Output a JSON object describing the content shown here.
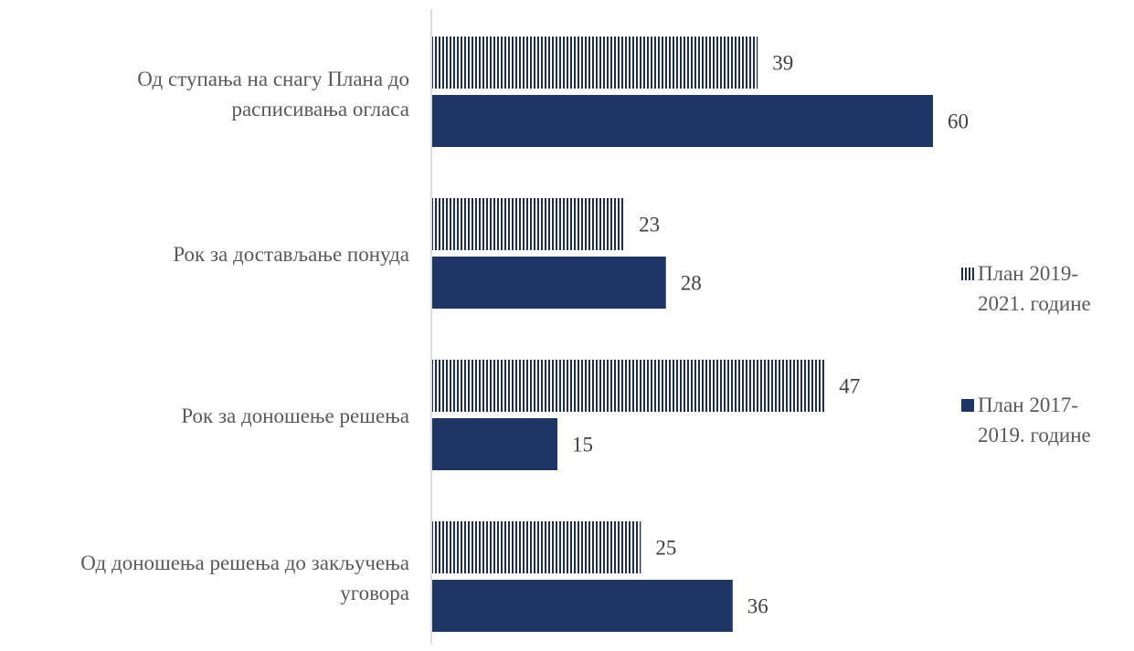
{
  "chart_data": {
    "type": "bar",
    "orientation": "horizontal",
    "categories": [
      "Од ступања на снагу Плана до расписивања огласа",
      "Рок за достављање понуда",
      "Рок за доношење решења",
      "Од доношења решења до закључења уговора"
    ],
    "series": [
      {
        "name": "План 2019-2021. године",
        "values": [
          39,
          23,
          47,
          25
        ],
        "color": "#1f2c4a",
        "pattern": "vertical-stripes"
      },
      {
        "name": "План 2017-2019. године",
        "values": [
          60,
          28,
          15,
          36
        ],
        "color": "#1f3563",
        "pattern": "solid"
      }
    ],
    "xlim": [
      0,
      60
    ],
    "legend_position": "right",
    "grid": false
  },
  "labels": {
    "cat0": [
      "Од ступања на снагу Плана до",
      "расписивања огласа"
    ],
    "cat1": [
      "Рок за достављање понуда"
    ],
    "cat2": [
      "Рок за доношење решења"
    ],
    "cat3": [
      "Од доношења решења до закључења",
      "уговора"
    ]
  },
  "legend": {
    "item0": [
      "План 2019-",
      "2021. године"
    ],
    "item1": [
      "План 2017-",
      "2019. године"
    ]
  }
}
